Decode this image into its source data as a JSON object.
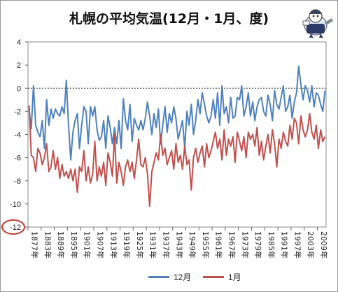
{
  "chart_data": {
    "type": "line",
    "title": "札幌の平均気温(12月・1月、度)",
    "xlabel": "",
    "ylabel": "",
    "ylim": [
      -12,
      4
    ],
    "yticks": [
      4,
      2,
      0,
      -2,
      -4,
      -6,
      -8,
      -10,
      -12
    ],
    "ytick_labels": [
      "4",
      "2",
      "0",
      "-2",
      "-4",
      "-6",
      "-8",
      "-10",
      "-12"
    ],
    "x_start_year": 1877,
    "x_end_year": 2012,
    "xtick_labels": [
      "1877年",
      "1883年",
      "1889年",
      "1895年",
      "1901年",
      "1907年",
      "1913年",
      "1919年",
      "1925年",
      "1931年",
      "1937年",
      "1943年",
      "1949年",
      "1955年",
      "1961年",
      "1967年",
      "1973年",
      "1979年",
      "1985年",
      "1991年",
      "1997年",
      "2003年",
      "2009年"
    ],
    "grid": "horizontal dashed zero line",
    "legend_position": "bottom",
    "highlighted_tick": "-12",
    "series": [
      {
        "name": "12月",
        "color": "#4f81bd",
        "values": [
          -1.8,
          -3.5,
          0.2,
          -3.2,
          -3.8,
          -4.2,
          -2.8,
          -5.2,
          -1.0,
          -3.2,
          -1.8,
          -2.6,
          -1.8,
          -2.2,
          -2.4,
          -1.6,
          -2.2,
          0.7,
          -3.2,
          -6.2,
          -3.8,
          -2.8,
          -2.2,
          -5.2,
          -3.2,
          -1.6,
          -2.0,
          -4.8,
          -1.6,
          -2.4,
          -1.6,
          -3.6,
          -4.5,
          -4.2,
          -2.8,
          -5.2,
          -2.4,
          -3.4,
          -4.8,
          -3.4,
          -4.8,
          -2.8,
          -5.2,
          -0.9,
          -2.8,
          -3.6,
          -1.4,
          -4.6,
          -2.6,
          -3.2,
          -3.6,
          -2.8,
          -3.6,
          -2.6,
          -1.2,
          -2.4,
          -4.0,
          -2.2,
          -3.4,
          -1.8,
          -4.8,
          -3.2,
          -1.6,
          -3.8,
          -2.2,
          -3.0,
          -1.6,
          -2.6,
          -4.4,
          -3.6,
          -2.8,
          -5.2,
          -2.0,
          -3.2,
          -1.4,
          -4.0,
          -2.8,
          -1.0,
          -2.2,
          -0.4,
          -1.4,
          -2.4,
          -3.0,
          -2.4,
          -1.0,
          -2.6,
          -0.4,
          -3.2,
          0.2,
          -2.2,
          -1.6,
          -3.0,
          -0.8,
          -2.6,
          -2.4,
          -0.8,
          -1.0,
          0.2,
          -2.4,
          -1.6,
          -0.4,
          -2.4,
          -1.2,
          -2.8,
          -1.6,
          -1.0,
          -0.8,
          -2.0,
          -2.4,
          -0.6,
          -1.4,
          -2.8,
          -0.2,
          -1.4,
          -1.8,
          -0.8,
          0.2,
          -2.0,
          -1.6,
          -0.6,
          -2.6,
          -1.2,
          -0.4,
          1.9,
          0.3,
          -1.0,
          0.2,
          -0.2,
          -1.2,
          0.2,
          -1.6,
          -0.4,
          -0.6,
          -1.4,
          -2.0,
          -0.2
        ]
      },
      {
        "name": "1月",
        "color": "#c0504d",
        "values": [
          -1.5,
          -5.8,
          -6.0,
          -7.2,
          -5.2,
          -5.6,
          -6.6,
          -6.0,
          -4.8,
          -7.2,
          -6.8,
          -5.4,
          -7.0,
          -6.0,
          -7.8,
          -6.6,
          -7.6,
          -7.2,
          -7.8,
          -7.0,
          -8.0,
          -7.0,
          -9.0,
          -6.8,
          -7.2,
          -5.4,
          -8.0,
          -6.8,
          -8.2,
          -7.4,
          -4.6,
          -8.0,
          -6.8,
          -7.6,
          -6.4,
          -8.4,
          -5.6,
          -6.4,
          -7.6,
          -4.0,
          -8.2,
          -6.4,
          -7.2,
          -8.4,
          -6.8,
          -6.2,
          -7.2,
          -6.4,
          -7.8,
          -6.2,
          -4.4,
          -6.6,
          -6.8,
          -6.0,
          -7.4,
          -10.2,
          -7.2,
          -6.4,
          -5.6,
          -6.2,
          -4.0,
          -5.8,
          -5.2,
          -6.6,
          -6.0,
          -5.4,
          -7.0,
          -4.8,
          -6.4,
          -5.8,
          -7.0,
          -5.0,
          -6.6,
          -6.2,
          -8.8,
          -6.0,
          -5.2,
          -6.4,
          -5.6,
          -5.0,
          -6.8,
          -4.8,
          -6.0,
          -5.4,
          -4.6,
          -3.8,
          -5.2,
          -4.4,
          -6.2,
          -3.6,
          -5.8,
          -4.4,
          -5.0,
          -4.2,
          -6.4,
          -3.8,
          -4.6,
          -5.4,
          -4.2,
          -6.0,
          -3.8,
          -4.4,
          -4.0,
          -5.0,
          -3.4,
          -5.8,
          -4.6,
          -6.2,
          -5.0,
          -4.0,
          -5.6,
          -3.6,
          -4.8,
          -6.8,
          -4.4,
          -5.2,
          -3.8,
          -4.6,
          -5.0,
          -3.2,
          -4.4,
          -2.6,
          -3.0,
          -4.8,
          -2.4,
          -3.6,
          -4.2,
          -3.6,
          -2.2,
          -3.8,
          -4.4,
          -3.2,
          -5.2,
          -3.6,
          -4.6,
          -4.2
        ]
      }
    ]
  }
}
